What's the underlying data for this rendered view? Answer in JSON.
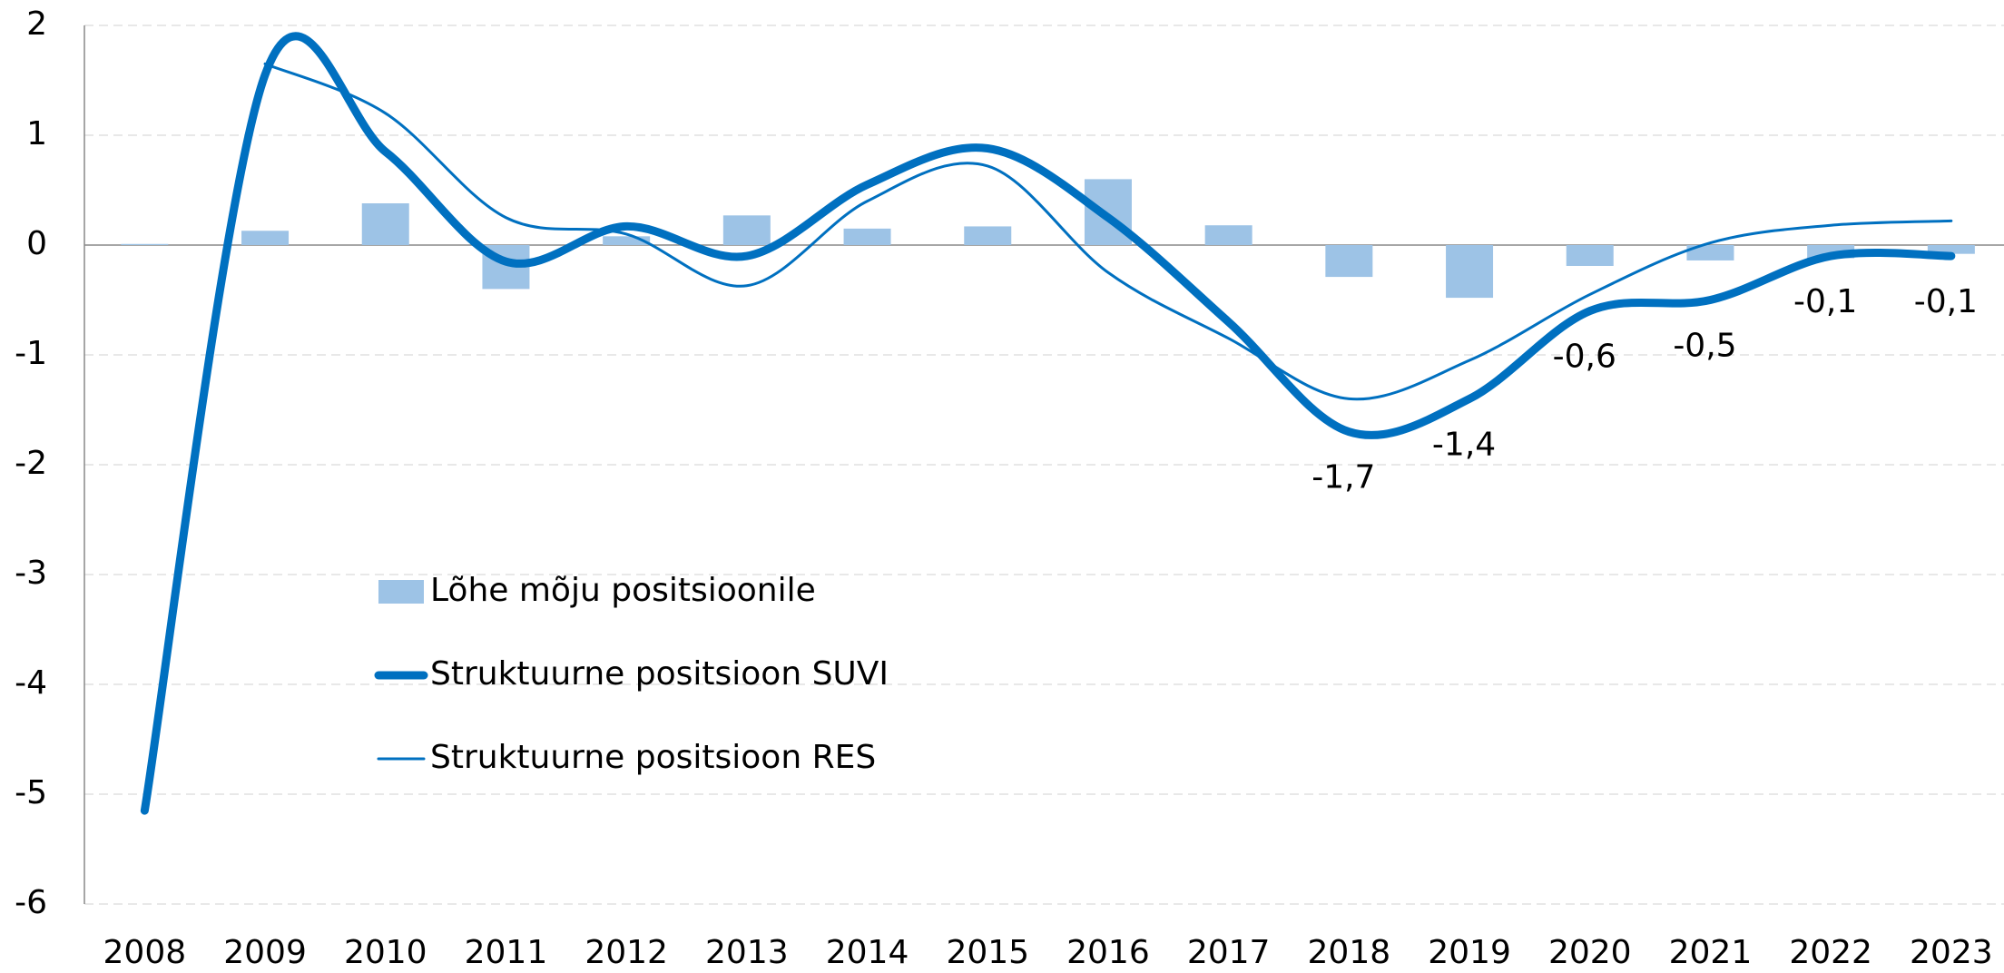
{
  "chart_data": {
    "type": "bar-line",
    "categories": [
      "2008",
      "2009",
      "2010",
      "2011",
      "2012",
      "2013",
      "2014",
      "2015",
      "2016",
      "2017",
      "2018",
      "2019",
      "2020",
      "2021",
      "2022",
      "2023"
    ],
    "series": [
      {
        "name": "Lõhe mõju positsioonile",
        "type": "bar",
        "color": "#9dc3e6",
        "values": [
          0.01,
          0.13,
          0.38,
          -0.4,
          0.08,
          0.27,
          0.15,
          0.17,
          0.6,
          0.18,
          -0.29,
          -0.48,
          -0.19,
          -0.14,
          -0.12,
          -0.08
        ]
      },
      {
        "name": "Struktuurne positsioon SUVI",
        "type": "line",
        "color": "#0070c0",
        "width": 9,
        "values": [
          -5.15,
          1.55,
          0.85,
          -0.15,
          0.17,
          -0.1,
          0.55,
          0.88,
          0.25,
          -0.7,
          -1.7,
          -1.4,
          -0.6,
          -0.5,
          -0.1,
          -0.1
        ],
        "value_labels": [
          null,
          null,
          null,
          null,
          null,
          null,
          null,
          null,
          null,
          null,
          "-1,7",
          "-1,4",
          "-0,6",
          "-0,5",
          "-0,1",
          "-0,1"
        ]
      },
      {
        "name": "Struktuurne positsioon RES",
        "type": "line",
        "color": "#0070c0",
        "width": 3,
        "values": [
          null,
          1.65,
          1.2,
          0.25,
          0.1,
          -0.37,
          0.4,
          0.72,
          -0.25,
          -0.85,
          -1.4,
          -1.05,
          -0.45,
          0.02,
          0.18,
          0.22
        ]
      }
    ],
    "ylim": [
      -6,
      2
    ],
    "yticks": [
      -6,
      -5,
      -4,
      -3,
      -2,
      -1,
      0,
      1,
      2
    ],
    "grid": true
  }
}
